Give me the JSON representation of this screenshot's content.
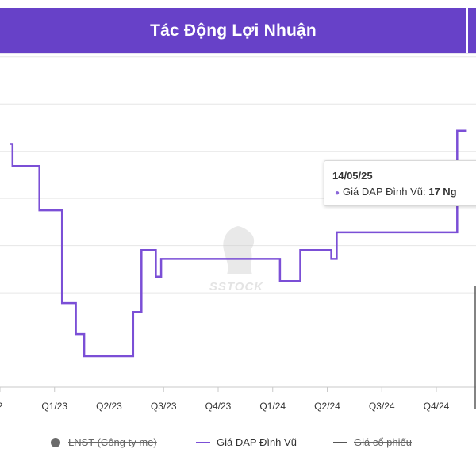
{
  "header": {
    "title": "Tác Động Lợi Nhuận"
  },
  "watermark": {
    "text": "SSTOCK"
  },
  "tooltip": {
    "date": "14/05/25",
    "series_label": "Giá DAP Đình Vũ:",
    "value": "17 Ng"
  },
  "legend": {
    "items": [
      {
        "label": "LNST (Công ty mẹ)",
        "marker": "circle",
        "color": "#666666",
        "hidden": true
      },
      {
        "label": "Giá DAP Đình Vũ",
        "marker": "line",
        "color": "#7b4fd6",
        "hidden": false
      },
      {
        "label": "Giá cổ phiếu",
        "marker": "line",
        "color": "#555555",
        "hidden": true
      }
    ]
  },
  "colors": {
    "header": "#6741c8",
    "series": "#7b4fd6",
    "grid": "#e6e6e6"
  },
  "chart_data": {
    "type": "line",
    "step": true,
    "categories": [
      "2",
      "Q1/23",
      "Q2/23",
      "Q3/23",
      "Q4/23",
      "Q1/24",
      "Q2/24",
      "Q3/24",
      "Q4/24",
      "("
    ],
    "y_gridline_count": 7,
    "y_tick_labels_visible": false,
    "series": [
      {
        "name": "Giá DAP Đình Vũ",
        "color": "#7b4fd6",
        "points": [
          {
            "x": "2022-12-01",
            "y": 17.0
          },
          {
            "x": "2022-12-06",
            "y": 16.5
          },
          {
            "x": "2023-01-20",
            "y": 15.5
          },
          {
            "x": "2023-02-27",
            "y": 13.4
          },
          {
            "x": "2023-03-22",
            "y": 12.7
          },
          {
            "x": "2023-04-05",
            "y": 12.2
          },
          {
            "x": "2023-06-26",
            "y": 13.2
          },
          {
            "x": "2023-07-10",
            "y": 14.6
          },
          {
            "x": "2023-08-03",
            "y": 14.0
          },
          {
            "x": "2023-08-12",
            "y": 14.4
          },
          {
            "x": "2024-02-27",
            "y": 13.9
          },
          {
            "x": "2024-04-01",
            "y": 14.6
          },
          {
            "x": "2024-05-23",
            "y": 14.4
          },
          {
            "x": "2024-06-01",
            "y": 15.0
          },
          {
            "x": "2024-12-20",
            "y": 17.3
          },
          {
            "x": "2025-01-05",
            "y": 17.3
          }
        ]
      }
    ]
  }
}
